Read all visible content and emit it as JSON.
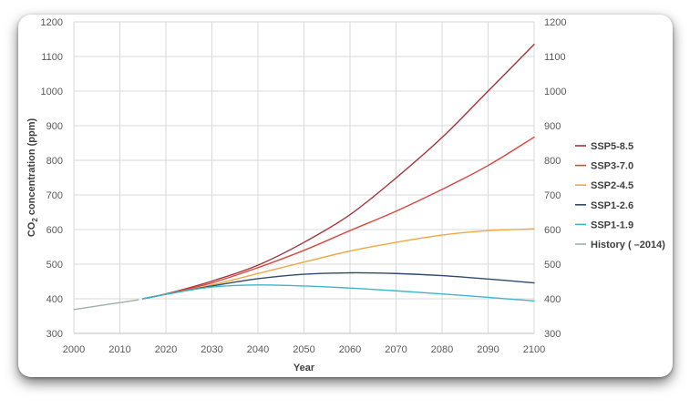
{
  "chart_data": {
    "type": "line",
    "title": "",
    "xlabel": "Year",
    "ylabel_prefix": "CO",
    "ylabel_sub": "2",
    "ylabel_suffix": " concentration (ppm)",
    "xlim": [
      2000,
      2100
    ],
    "ylim": [
      300,
      1200
    ],
    "xticks": [
      2000,
      2010,
      2020,
      2030,
      2040,
      2050,
      2060,
      2070,
      2080,
      2090,
      2100
    ],
    "yticks": [
      300,
      400,
      500,
      600,
      700,
      800,
      900,
      1000,
      1100,
      1200
    ],
    "grid": true,
    "secondary_y_axis": true,
    "legend_position": "right",
    "series": [
      {
        "name": "SSP5-8.5",
        "color": "#a3343c",
        "x": [
          2015,
          2020,
          2030,
          2040,
          2050,
          2060,
          2070,
          2080,
          2090,
          2100
        ],
        "y": [
          400,
          414,
          451,
          497,
          563,
          643,
          749,
          866,
          1000,
          1135
        ]
      },
      {
        "name": "SSP3-7.0",
        "color": "#d9473f",
        "x": [
          2015,
          2020,
          2030,
          2040,
          2050,
          2060,
          2070,
          2080,
          2090,
          2100
        ],
        "y": [
          400,
          414,
          446,
          490,
          540,
          597,
          653,
          716,
          785,
          867
        ]
      },
      {
        "name": "SSP2-4.5",
        "color": "#f0a742",
        "x": [
          2015,
          2020,
          2030,
          2040,
          2050,
          2060,
          2070,
          2080,
          2090,
          2100
        ],
        "y": [
          400,
          413,
          440,
          473,
          506,
          538,
          563,
          584,
          597,
          602
        ]
      },
      {
        "name": "SSP1-2.6",
        "color": "#2f4a6a",
        "x": [
          2015,
          2020,
          2030,
          2040,
          2050,
          2060,
          2070,
          2080,
          2090,
          2100
        ],
        "y": [
          400,
          413,
          437,
          458,
          471,
          475,
          473,
          467,
          457,
          446
        ]
      },
      {
        "name": "SSP1-1.9",
        "color": "#3cb6cb",
        "x": [
          2015,
          2020,
          2030,
          2040,
          2050,
          2060,
          2070,
          2080,
          2090,
          2100
        ],
        "y": [
          400,
          413,
          434,
          440,
          437,
          431,
          423,
          414,
          404,
          394
        ]
      },
      {
        "name": "History ( –2014)",
        "color": "#9ab3a3",
        "x": [
          2000,
          2005,
          2010,
          2014
        ],
        "y": [
          369,
          379,
          389,
          397
        ]
      }
    ]
  }
}
